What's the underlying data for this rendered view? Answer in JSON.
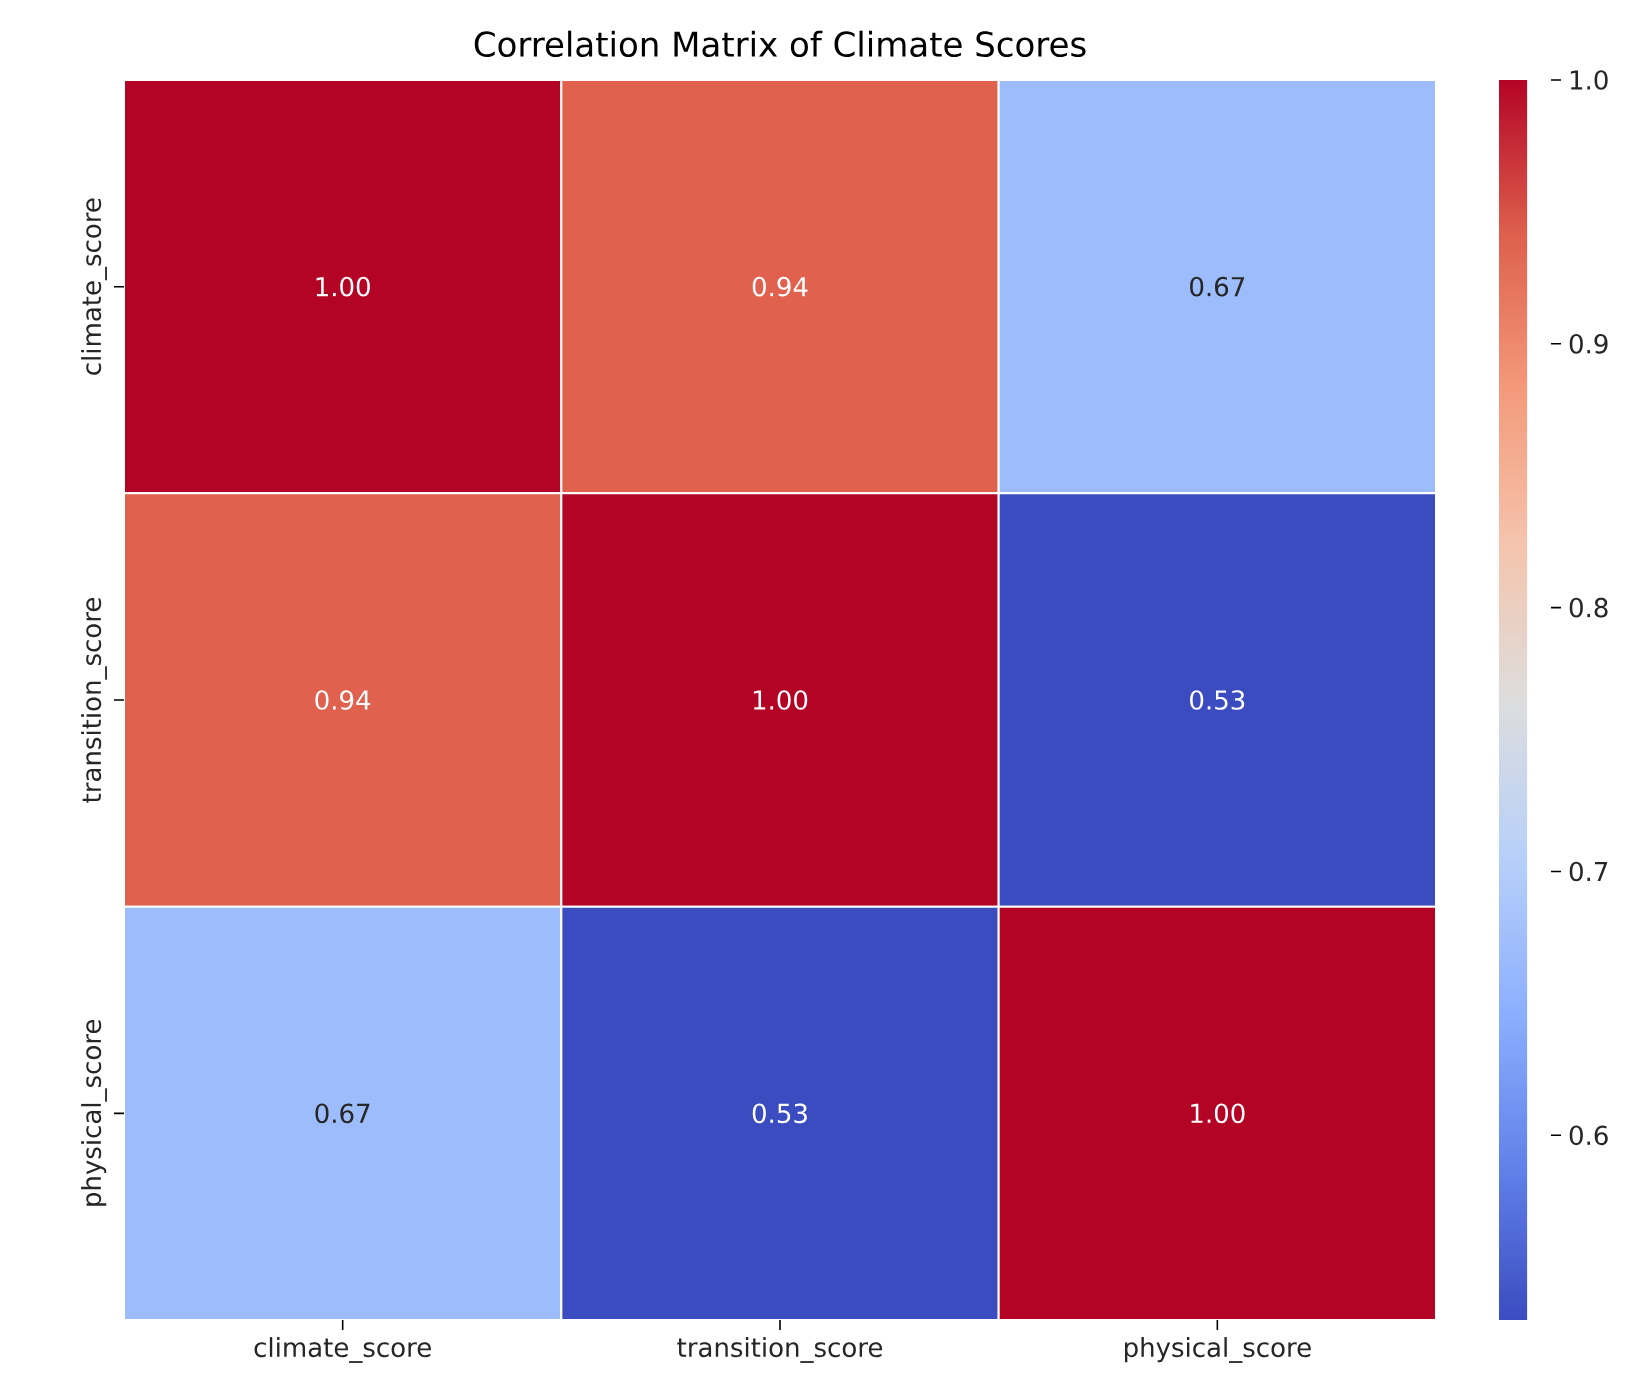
{
  "chart_data": {
    "type": "heatmap",
    "title": "Correlation Matrix of Climate Scores",
    "categories": [
      "climate_score",
      "transition_score",
      "physical_score"
    ],
    "y_categories": [
      "climate_score",
      "transition_score",
      "physical_score"
    ],
    "cells": [
      [
        1.0,
        0.94,
        0.67
      ],
      [
        0.94,
        1.0,
        0.53
      ],
      [
        0.67,
        0.53,
        1.0
      ]
    ],
    "cell_labels": [
      [
        "1.00",
        "0.94",
        "0.67"
      ],
      [
        "0.94",
        "1.00",
        "0.53"
      ],
      [
        "0.67",
        "0.53",
        "1.00"
      ]
    ],
    "data_labels": true,
    "clim": [
      0.53,
      1.0
    ],
    "cticks": [
      0.6,
      0.7,
      0.8,
      0.9,
      {
        "value": 1,
        "label": "1.0"
      }
    ]
  }
}
